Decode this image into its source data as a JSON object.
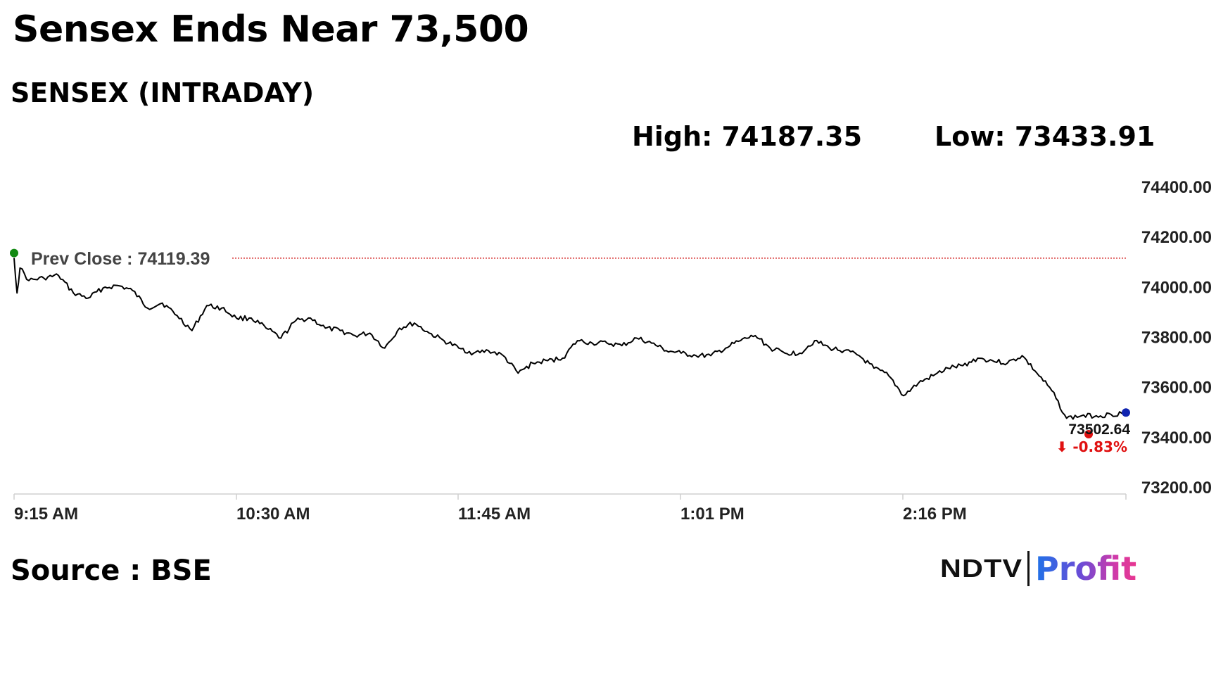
{
  "headline": "Sensex Ends Near 73,500",
  "subtitle": "SENSEX (INTRADAY)",
  "stats": {
    "high": "High: 74187.35",
    "low": "Low: 73433.91"
  },
  "source": "Source : BSE",
  "brand": {
    "left": "NDTV",
    "right": "Profit"
  },
  "colors": {
    "line": "#000000",
    "prev_close": "#cc0000",
    "start_marker": "#138a13",
    "end_marker": "#1024b0",
    "low_marker": "#e01010",
    "change": "#e01010",
    "axis": "#cfcfcf"
  },
  "chart_data": {
    "type": "line",
    "x_ticks": [
      "9:15 AM",
      "10:30 AM",
      "11:45 AM",
      "1:01 PM",
      "2:16 PM"
    ],
    "y_ticks": [
      "74400.00",
      "74200.00",
      "74000.00",
      "73800.00",
      "73600.00",
      "73400.00",
      "73200.00"
    ],
    "ylim": [
      73200,
      74400
    ],
    "xlim": [
      "9:15",
      "15:30"
    ],
    "prev_close": {
      "label": "Prev Close : 74119.39",
      "value": 74119.39
    },
    "last": {
      "value": 73502.64,
      "label": "73502.64",
      "change": "-0.83%",
      "arrow": "⬇"
    },
    "series": [
      {
        "x": [
          "9:15",
          "9:16",
          "9:17",
          "9:20",
          "9:25",
          "9:30",
          "9:35",
          "9:40",
          "9:45",
          "9:50",
          "9:55",
          "10:00",
          "10:05",
          "10:10",
          "10:15",
          "10:20",
          "10:25",
          "10:30",
          "10:35",
          "10:40",
          "10:45",
          "10:50",
          "10:55",
          "11:00",
          "11:05",
          "11:10",
          "11:15",
          "11:20",
          "11:25",
          "11:30",
          "11:35",
          "11:40",
          "11:45",
          "11:50",
          "11:55",
          "12:00",
          "12:05",
          "12:10",
          "12:15",
          "12:20",
          "12:25",
          "12:30",
          "12:35",
          "12:40",
          "12:45",
          "12:50",
          "12:55",
          "13:00",
          "13:05",
          "13:10",
          "13:15",
          "13:20",
          "13:25",
          "13:30",
          "13:35",
          "13:40",
          "13:45",
          "13:50",
          "13:55",
          "14:00",
          "14:05",
          "14:10",
          "14:15",
          "14:20",
          "14:25",
          "14:30",
          "14:35",
          "14:40",
          "14:45",
          "14:50",
          "14:55",
          "15:00",
          "15:05",
          "15:10",
          "15:15",
          "15:20",
          "15:25",
          "15:30"
        ],
        "y": [
          74120,
          73980,
          74080,
          74030,
          74040,
          74050,
          73980,
          73960,
          74000,
          74010,
          73990,
          73920,
          73940,
          73890,
          73830,
          73930,
          73920,
          73880,
          73880,
          73840,
          73800,
          73870,
          73880,
          73840,
          73830,
          73810,
          73820,
          73760,
          73840,
          73860,
          73820,
          73790,
          73760,
          73740,
          73750,
          73730,
          73660,
          73700,
          73710,
          73720,
          73790,
          73780,
          73780,
          73770,
          73800,
          73780,
          73750,
          73740,
          73730,
          73730,
          73760,
          73790,
          73810,
          73760,
          73740,
          73740,
          73790,
          73760,
          73750,
          73730,
          73680,
          73650,
          73570,
          73620,
          73650,
          73680,
          73690,
          73720,
          73710,
          73700,
          73730,
          73660,
          73590,
          73480,
          73490,
          73490,
          73495,
          73502.64
        ]
      }
    ]
  }
}
